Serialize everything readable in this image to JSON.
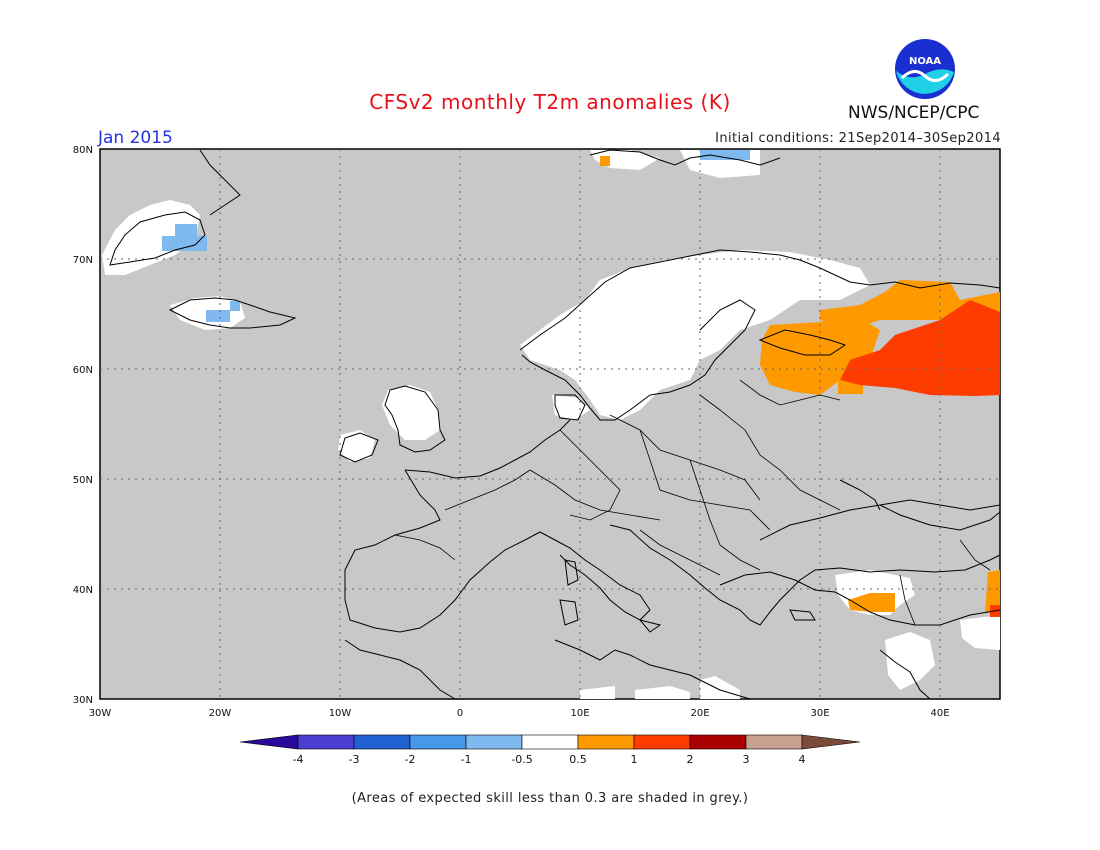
{
  "title": "CFSv2 monthly T2m anomalies (K)",
  "org_label": "NWS/NCEP/CPC",
  "logo_text": "NOAA",
  "month_label": "Jan 2015",
  "initial_conditions": "Initial conditions: 21Sep2014–30Sep2014",
  "skill_note": "(Areas of expected skill less than 0.3 are shaded in grey.)",
  "map": {
    "lat_labels": [
      "80N",
      "70N",
      "60N",
      "50N",
      "40N",
      "30N"
    ],
    "lon_labels": [
      "30W",
      "20W",
      "10W",
      "0",
      "10E",
      "20E",
      "30E",
      "40E"
    ],
    "background_color": "#c8c8c8"
  },
  "colorbar": {
    "labels": [
      "-4",
      "-3",
      "-2",
      "-1",
      "-0.5",
      "0.5",
      "1",
      "2",
      "3",
      "4"
    ],
    "colors": [
      "#2a0a9a",
      "#4a3fd0",
      "#2060d0",
      "#4898ea",
      "#80b8f0",
      "#ffffff",
      "#ff9900",
      "#ff3c00",
      "#a80000",
      "#c8a090",
      "#7a4a3a"
    ]
  }
}
